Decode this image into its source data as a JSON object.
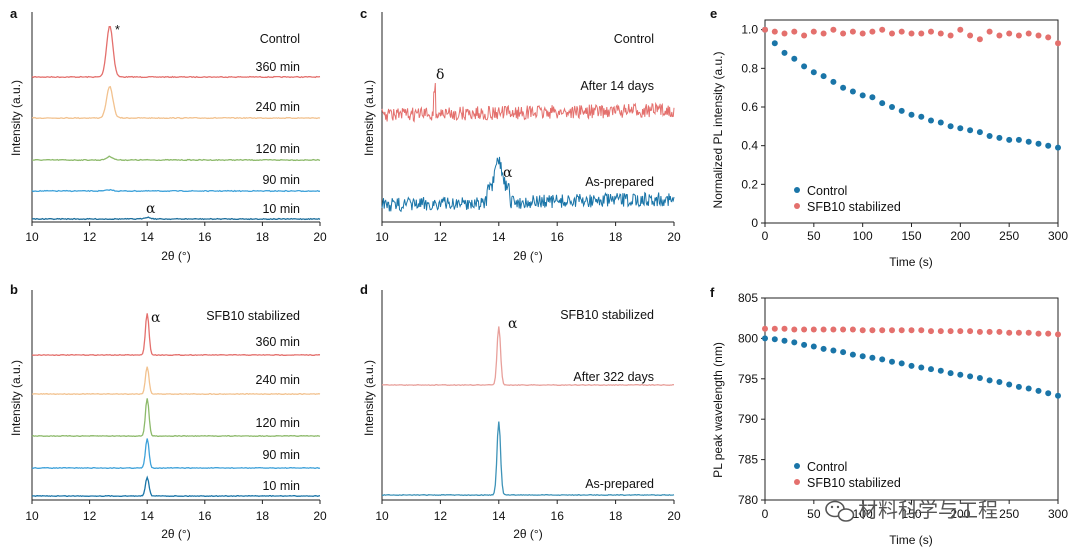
{
  "colors": {
    "red": "#E4706D",
    "orange": "#F2C28F",
    "green": "#8DBA6B",
    "lightblue": "#3FA2DA",
    "darkblue": "#1C6E9C",
    "blue": "#1A75A8",
    "pink_light": "#E8A09B",
    "teal": "#3E93B8",
    "axis": "#222222"
  },
  "watermark": {
    "text": "材料科学与工程",
    "icon": "wechat-icon"
  },
  "chart_data": [
    {
      "id": "a",
      "panel_label": "a",
      "type": "line",
      "xlabel": "2θ (°)",
      "ylabel": "Intensity (a.u.)",
      "xlim": [
        10,
        20
      ],
      "xticks": [
        "10",
        "12",
        "14",
        "16",
        "18",
        "20"
      ],
      "legend_title": "Control",
      "series": [
        {
          "name": "360 min",
          "color": "red",
          "peak_x": 12.7,
          "peak_height": 0.9
        },
        {
          "name": "240 min",
          "color": "orange",
          "peak_x": 12.7,
          "peak_height": 0.55
        },
        {
          "name": "120 min",
          "color": "green",
          "peak_x": 12.7,
          "peak_height": 0.06
        },
        {
          "name": "90 min",
          "color": "lightblue",
          "peak_x": 12.7,
          "peak_height": 0.02
        },
        {
          "name": "10 min",
          "color": "darkblue",
          "peak_x": 14.0,
          "peak_height": 0.03
        }
      ],
      "annotations": [
        {
          "text": "*",
          "x": 12.75
        },
        {
          "text": "α",
          "x": 14.0
        }
      ]
    },
    {
      "id": "b",
      "panel_label": "b",
      "type": "line",
      "xlabel": "2θ (°)",
      "ylabel": "Intensity (a.u.)",
      "xlim": [
        10,
        20
      ],
      "xticks": [
        "10",
        "12",
        "14",
        "16",
        "18",
        "20"
      ],
      "legend_title": "SFB10 stabilized",
      "series": [
        {
          "name": "360 min",
          "color": "red",
          "peak_x": 14.0,
          "peak_height": 1.0
        },
        {
          "name": "240 min",
          "color": "orange",
          "peak_x": 14.0,
          "peak_height": 0.65
        },
        {
          "name": "120 min",
          "color": "green",
          "peak_x": 14.0,
          "peak_height": 0.9
        },
        {
          "name": "90 min",
          "color": "lightblue",
          "peak_x": 14.0,
          "peak_height": 0.7
        },
        {
          "name": "10 min",
          "color": "blue",
          "peak_x": 14.0,
          "peak_height": 0.45
        }
      ],
      "annotations": [
        {
          "text": "α",
          "x": 14.3
        }
      ]
    },
    {
      "id": "c",
      "panel_label": "c",
      "type": "line",
      "xlabel": "2θ (°)",
      "ylabel": "Intensity (a.u.)",
      "xlim": [
        10,
        20
      ],
      "xticks": [
        "10",
        "12",
        "14",
        "16",
        "18",
        "20"
      ],
      "legend_title": "Control",
      "series": [
        {
          "name": "After 14 days",
          "color": "red",
          "peak_x": 11.8,
          "peak_height": 0.3,
          "noisy": true
        },
        {
          "name": "As-prepared",
          "color": "blue",
          "peak_x": 14.0,
          "peak_height": 0.45,
          "noisy": true
        }
      ],
      "annotations": [
        {
          "text": "δ",
          "x": 11.9
        },
        {
          "text": "α",
          "x": 14.5
        }
      ]
    },
    {
      "id": "d",
      "panel_label": "d",
      "type": "line",
      "xlabel": "2θ (°)",
      "ylabel": "Intensity (a.u.)",
      "xlim": [
        10,
        20
      ],
      "xticks": [
        "10",
        "12",
        "14",
        "16",
        "18",
        "20"
      ],
      "legend_title": "SFB10 stabilized",
      "series": [
        {
          "name": "After 322 days",
          "color": "pink_light",
          "peak_x": 14.0,
          "peak_height": 0.6
        },
        {
          "name": "As-prepared",
          "color": "teal",
          "peak_x": 14.0,
          "peak_height": 0.75
        }
      ],
      "annotations": [
        {
          "text": "α",
          "x": 14.4
        }
      ]
    },
    {
      "id": "e",
      "panel_label": "e",
      "type": "scatter",
      "xlabel": "Time (s)",
      "ylabel": "Normalized PL intensity (a.u.)",
      "xlim": [
        0,
        300
      ],
      "ylim": [
        0,
        1.05
      ],
      "xticks": [
        "0",
        "50",
        "100",
        "150",
        "200",
        "250",
        "300"
      ],
      "yticks": [
        "0",
        "0.2",
        "0.4",
        "0.6",
        "0.8",
        "1.0"
      ],
      "legend": [
        "Control",
        "SFB10 stabilized"
      ],
      "x": [
        0,
        10,
        20,
        30,
        40,
        50,
        60,
        70,
        80,
        90,
        100,
        110,
        120,
        130,
        140,
        150,
        160,
        170,
        180,
        190,
        200,
        210,
        220,
        230,
        240,
        250,
        260,
        270,
        280,
        290,
        300
      ],
      "series": [
        {
          "name": "Control",
          "color": "blue",
          "values": [
            1.0,
            0.93,
            0.88,
            0.85,
            0.81,
            0.78,
            0.76,
            0.73,
            0.7,
            0.68,
            0.66,
            0.65,
            0.62,
            0.6,
            0.58,
            0.56,
            0.55,
            0.53,
            0.52,
            0.5,
            0.49,
            0.48,
            0.47,
            0.45,
            0.44,
            0.43,
            0.43,
            0.42,
            0.41,
            0.4,
            0.39
          ]
        },
        {
          "name": "SFB10 stabilized",
          "color": "red",
          "values": [
            1.0,
            0.99,
            0.98,
            0.99,
            0.97,
            0.99,
            0.98,
            1.0,
            0.98,
            0.99,
            0.98,
            0.99,
            1.0,
            0.98,
            0.99,
            0.98,
            0.98,
            0.99,
            0.98,
            0.97,
            1.0,
            0.97,
            0.95,
            0.99,
            0.97,
            0.98,
            0.97,
            0.98,
            0.97,
            0.96,
            0.93
          ]
        }
      ]
    },
    {
      "id": "f",
      "panel_label": "f",
      "type": "scatter",
      "xlabel": "Time (s)",
      "ylabel": "PL peak wavelength (nm)",
      "xlim": [
        0,
        300
      ],
      "ylim": [
        780,
        805
      ],
      "xticks": [
        "0",
        "50",
        "100",
        "150",
        "200",
        "250",
        "300"
      ],
      "yticks": [
        "780",
        "785",
        "790",
        "795",
        "800",
        "805"
      ],
      "legend": [
        "Control",
        "SFB10 stabilized"
      ],
      "x": [
        0,
        10,
        20,
        30,
        40,
        50,
        60,
        70,
        80,
        90,
        100,
        110,
        120,
        130,
        140,
        150,
        160,
        170,
        180,
        190,
        200,
        210,
        220,
        230,
        240,
        250,
        260,
        270,
        280,
        290,
        300
      ],
      "series": [
        {
          "name": "Control",
          "color": "blue",
          "values": [
            800.0,
            799.9,
            799.7,
            799.5,
            799.2,
            799.0,
            798.7,
            798.5,
            798.3,
            798.0,
            797.8,
            797.6,
            797.4,
            797.1,
            796.9,
            796.6,
            796.4,
            796.2,
            796.0,
            795.7,
            795.5,
            795.3,
            795.1,
            794.8,
            794.6,
            794.3,
            794.0,
            793.8,
            793.5,
            793.2,
            792.9
          ]
        },
        {
          "name": "SFB10 stabilized",
          "color": "red",
          "values": [
            801.2,
            801.2,
            801.2,
            801.1,
            801.1,
            801.1,
            801.1,
            801.1,
            801.1,
            801.1,
            801.0,
            801.0,
            801.0,
            801.0,
            801.0,
            801.0,
            801.0,
            800.9,
            800.9,
            800.9,
            800.9,
            800.9,
            800.8,
            800.8,
            800.8,
            800.7,
            800.7,
            800.7,
            800.6,
            800.6,
            800.5
          ]
        }
      ]
    }
  ]
}
